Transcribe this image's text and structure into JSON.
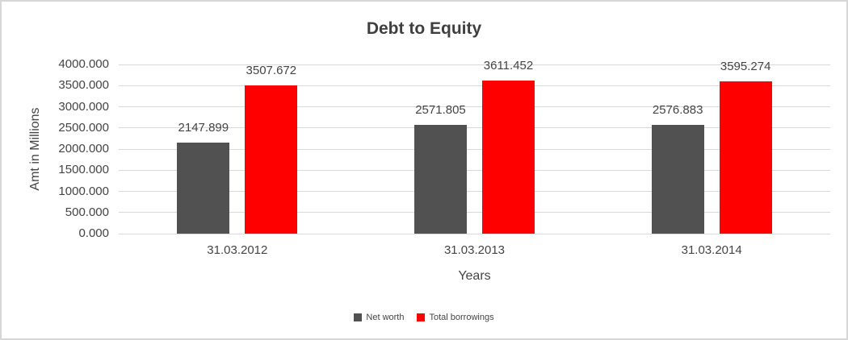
{
  "chart_data": {
    "type": "bar",
    "title": "Debt to Equity",
    "xlabel": "Years",
    "ylabel": "Amt in Millions",
    "categories": [
      "31.03.2012",
      "31.03.2013",
      "31.03.2014"
    ],
    "series": [
      {
        "name": "Net worth",
        "color": "#515151",
        "values": [
          2147.899,
          2571.805,
          2576.883
        ]
      },
      {
        "name": "Total borrowings",
        "color": "#ff0000",
        "values": [
          3507.672,
          3611.452,
          3595.274
        ]
      }
    ],
    "data_labels": [
      [
        "2147.899",
        "2571.805",
        "2576.883"
      ],
      [
        "3507.672",
        "3611.452",
        "3595.274"
      ]
    ],
    "ylim": [
      0,
      4000
    ],
    "ytick_step": 500,
    "ytick_decimals": 3,
    "ytick_labels": [
      "0.000",
      "500.000",
      "1000.000",
      "1500.000",
      "2000.000",
      "2500.000",
      "3000.000",
      "3500.000",
      "4000.000"
    ],
    "grid": true,
    "legend_position": "bottom",
    "gridline_color": "#d9d9d9",
    "text_color": "#444444",
    "title_color": "#3f3f3f"
  }
}
